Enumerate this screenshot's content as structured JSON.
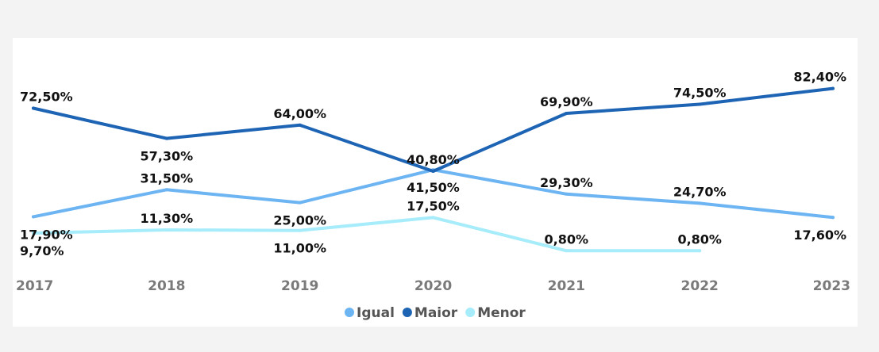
{
  "chart_data": {
    "type": "line",
    "categories": [
      "2017",
      "2018",
      "2019",
      "2020",
      "2021",
      "2022",
      "2023"
    ],
    "series": [
      {
        "name": "Igual",
        "color": "#6cb4f2",
        "values": [
          17.9,
          31.5,
          25.0,
          41.5,
          29.3,
          24.7,
          17.6
        ],
        "labels": [
          "17,90%",
          "31,50%",
          "25,00%",
          "41,50%",
          "29,30%",
          "24,70%",
          "17,60%"
        ]
      },
      {
        "name": "Maior",
        "color": "#1e64b4",
        "values": [
          72.5,
          57.3,
          64.0,
          40.8,
          69.9,
          74.5,
          82.4
        ],
        "labels": [
          "72,50%",
          "57,30%",
          "64,00%",
          "40,80%",
          "69,90%",
          "74,50%",
          "82,40%"
        ]
      },
      {
        "name": "Menor",
        "color": "#a6ecfb",
        "values": [
          9.7,
          11.3,
          11.0,
          17.5,
          0.8,
          0.8,
          null
        ],
        "labels": [
          "9,70%",
          "11,30%",
          "11,00%",
          "17,50%",
          "0,80%",
          "0,80%",
          null
        ]
      }
    ],
    "grid": false,
    "legend": "bottom-center"
  }
}
